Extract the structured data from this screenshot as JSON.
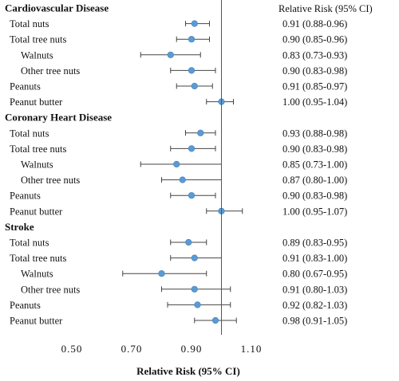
{
  "chart_data": {
    "type": "forest",
    "title": "",
    "column_header": "Relative Risk (95% CI)",
    "xlabel": "Relative Risk (95% CI)",
    "xlim": [
      0.5,
      1.1
    ],
    "xticks": [
      "0.50",
      "0.70",
      "0.90",
      "1.10"
    ],
    "reference_line": 1.0,
    "point_color": "#5b9bd5",
    "groups": [
      {
        "name": "Cardiovascular Disease",
        "rows": [
          {
            "label": "Total nuts",
            "rr": 0.91,
            "lo": 0.88,
            "hi": 0.96,
            "text": "0.91 (0.88-0.96)",
            "indent": 0
          },
          {
            "label": "Total tree nuts",
            "rr": 0.9,
            "lo": 0.85,
            "hi": 0.96,
            "text": "0.90 (0.85-0.96)",
            "indent": 0
          },
          {
            "label": "Walnuts",
            "rr": 0.83,
            "lo": 0.73,
            "hi": 0.93,
            "text": "0.83 (0.73-0.93)",
            "indent": 1
          },
          {
            "label": "Other tree nuts",
            "rr": 0.9,
            "lo": 0.83,
            "hi": 0.98,
            "text": "0.90 (0.83-0.98)",
            "indent": 1
          },
          {
            "label": "Peanuts",
            "rr": 0.91,
            "lo": 0.85,
            "hi": 0.97,
            "text": "0.91 (0.85-0.97)",
            "indent": 0
          },
          {
            "label": "Peanut butter",
            "rr": 1.0,
            "lo": 0.95,
            "hi": 1.04,
            "text": "1.00 (0.95-1.04)",
            "indent": 0
          }
        ]
      },
      {
        "name": "Coronary Heart Disease",
        "rows": [
          {
            "label": "Total nuts",
            "rr": 0.93,
            "lo": 0.88,
            "hi": 0.98,
            "text": "0.93 (0.88-0.98)",
            "indent": 0
          },
          {
            "label": "Total tree nuts",
            "rr": 0.9,
            "lo": 0.83,
            "hi": 0.98,
            "text": "0.90 (0.83-0.98)",
            "indent": 0
          },
          {
            "label": "Walnuts",
            "rr": 0.85,
            "lo": 0.73,
            "hi": 1.0,
            "text": "0.85 (0.73-1.00)",
            "indent": 1
          },
          {
            "label": "Other tree nuts",
            "rr": 0.87,
            "lo": 0.8,
            "hi": 1.0,
            "text": "0.87 (0.80-1.00)",
            "indent": 1
          },
          {
            "label": "Peanuts",
            "rr": 0.9,
            "lo": 0.83,
            "hi": 0.98,
            "text": "0.90 (0.83-0.98)",
            "indent": 0
          },
          {
            "label": "Peanut butter",
            "rr": 1.0,
            "lo": 0.95,
            "hi": 1.07,
            "text": "1.00 (0.95-1.07)",
            "indent": 0
          }
        ]
      },
      {
        "name": "Stroke",
        "rows": [
          {
            "label": "Total nuts",
            "rr": 0.89,
            "lo": 0.83,
            "hi": 0.95,
            "text": "0.89 (0.83-0.95)",
            "indent": 0
          },
          {
            "label": "Total tree nuts",
            "rr": 0.91,
            "lo": 0.83,
            "hi": 1.0,
            "text": "0.91 (0.83-1.00)",
            "indent": 0
          },
          {
            "label": "Walnuts",
            "rr": 0.8,
            "lo": 0.67,
            "hi": 0.95,
            "text": "0.80 (0.67-0.95)",
            "indent": 1
          },
          {
            "label": "Other tree nuts",
            "rr": 0.91,
            "lo": 0.8,
            "hi": 1.03,
            "text": "0.91 (0.80-1.03)",
            "indent": 1
          },
          {
            "label": "Peanuts",
            "rr": 0.92,
            "lo": 0.82,
            "hi": 1.03,
            "text": "0.92 (0.82-1.03)",
            "indent": 0
          },
          {
            "label": "Peanut butter",
            "rr": 0.98,
            "lo": 0.91,
            "hi": 1.05,
            "text": "0.98 (0.91-1.05)",
            "indent": 0
          }
        ]
      }
    ]
  }
}
